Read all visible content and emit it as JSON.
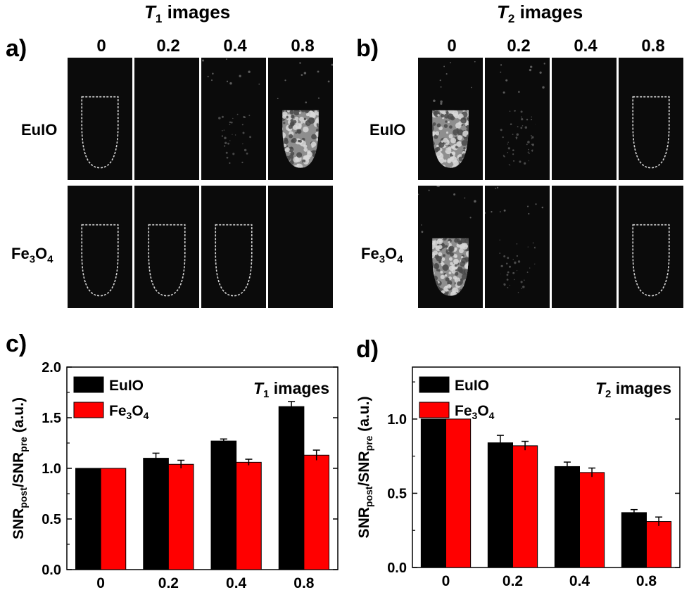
{
  "panels": {
    "a": {
      "letter": "a)",
      "title_italic": "T",
      "title_sub": "1",
      "title_rest": " images"
    },
    "b": {
      "letter": "b)",
      "title_italic": "T",
      "title_sub": "2",
      "title_rest": " images"
    },
    "c": {
      "letter": "c)"
    },
    "d": {
      "letter": "d)"
    }
  },
  "concentrations": [
    "0",
    "0.2",
    "0.4",
    "0.8"
  ],
  "rows": [
    {
      "label_main": "EuIO"
    },
    {
      "label_main": "Fe",
      "sub1": "3",
      "mid": "O",
      "sub2": "4"
    }
  ],
  "mri_images": {
    "T1": {
      "EuIO": [
        "outline",
        "empty",
        "faint",
        "bright"
      ],
      "Fe3O4": [
        "outline",
        "outline",
        "outline",
        "empty"
      ]
    },
    "T2": {
      "EuIO": [
        "bright",
        "faint",
        "empty",
        "outline"
      ],
      "Fe3O4": [
        "bright",
        "faint",
        "empty",
        "outline"
      ]
    }
  },
  "chart_data": [
    {
      "type": "bar",
      "title_italic": "T",
      "title_sub": "1",
      "title_rest": " images",
      "categories": [
        "0",
        "0.2",
        "0.4",
        "0.8"
      ],
      "series": [
        {
          "name": "EuIO",
          "color": "#000000",
          "values": [
            1.0,
            1.1,
            1.27,
            1.61
          ],
          "errors": [
            0.0,
            0.05,
            0.02,
            0.05
          ]
        },
        {
          "name": "Fe3O4",
          "color": "#ff0000",
          "values": [
            1.0,
            1.04,
            1.06,
            1.13
          ],
          "errors": [
            0.0,
            0.04,
            0.03,
            0.05
          ]
        }
      ],
      "ylabel": "SNRpost/SNRpre (a.u.)",
      "ylim": [
        0,
        2.0
      ],
      "yticks": [
        "0.0",
        "0.5",
        "1.0",
        "1.5",
        "2.0"
      ],
      "legend": "top-left"
    },
    {
      "type": "bar",
      "title_italic": "T",
      "title_sub": "2",
      "title_rest": " images",
      "categories": [
        "0",
        "0.2",
        "0.4",
        "0.8"
      ],
      "series": [
        {
          "name": "EuIO",
          "color": "#000000",
          "values": [
            1.0,
            0.84,
            0.68,
            0.37
          ],
          "errors": [
            0.0,
            0.05,
            0.03,
            0.02
          ]
        },
        {
          "name": "Fe3O4",
          "color": "#ff0000",
          "values": [
            1.0,
            0.82,
            0.64,
            0.31
          ],
          "errors": [
            0.0,
            0.03,
            0.03,
            0.03
          ]
        }
      ],
      "ylabel": "SNRpost/SNRpre (a.u.)",
      "ylim": [
        0,
        1.35
      ],
      "yticks": [
        "0.0",
        "0.5",
        "1.0"
      ],
      "legend": "top-left"
    }
  ],
  "legend_labels": {
    "euio": "EuIO",
    "fe_main": "Fe",
    "fe_sub1": "3",
    "fe_mid": "O",
    "fe_sub2": "4"
  },
  "ylabel_parts": {
    "snr": "SNR",
    "post": "post",
    "slash": "/SNR",
    "pre": "pre",
    "unit": " (a.u.)"
  }
}
